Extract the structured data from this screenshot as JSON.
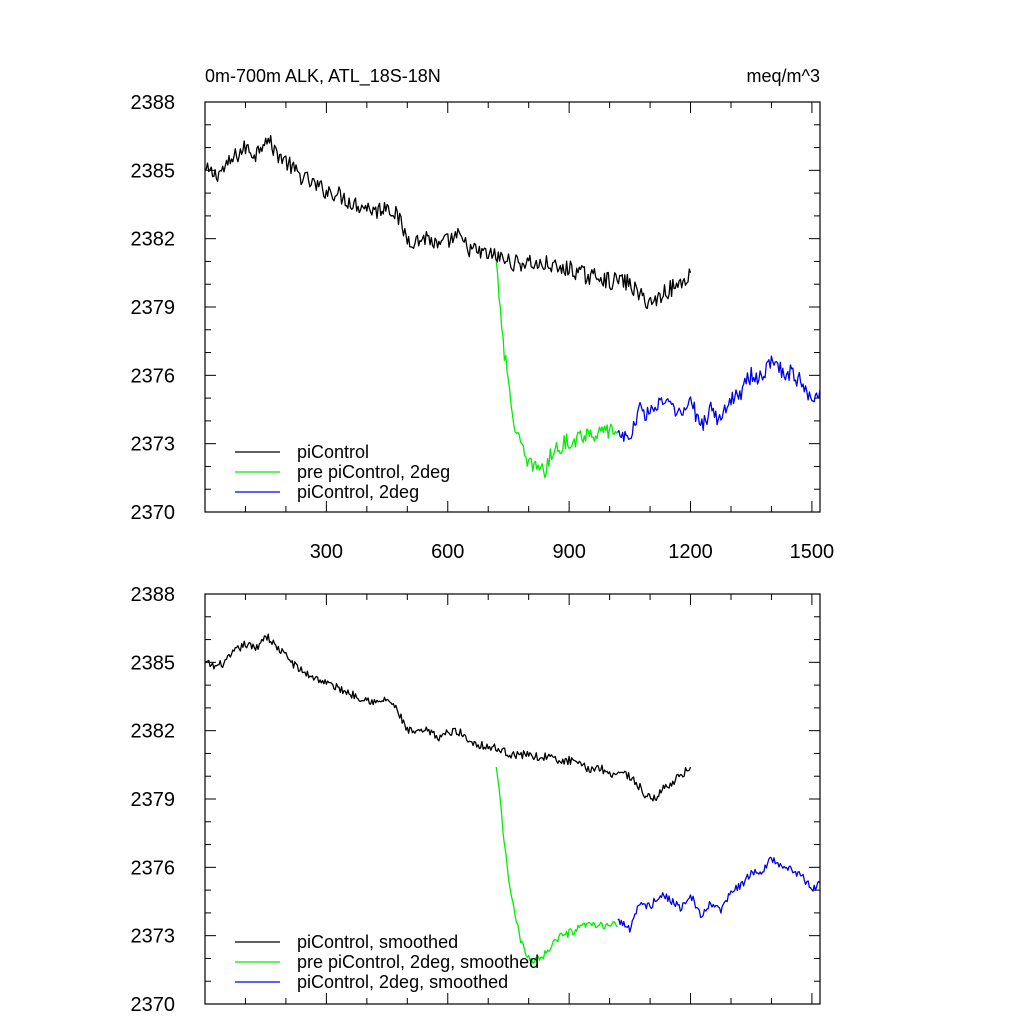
{
  "chart_data": [
    {
      "type": "line",
      "title_left": "0m-700m ALK, ATL_18S-18N",
      "title_right": "meq/m^3",
      "xlim": [
        0,
        1520
      ],
      "ylim": [
        2370,
        2388
      ],
      "x_ticks": [
        300,
        600,
        900,
        1200,
        1500
      ],
      "x_tick_labels": [
        "300",
        "600",
        "900",
        "1200",
        "1500"
      ],
      "y_ticks": [
        2370,
        2373,
        2376,
        2379,
        2382,
        2385,
        2388
      ],
      "y_tick_labels": [
        "2370",
        "2373",
        "2376",
        "2379",
        "2382",
        "2385",
        "2388"
      ],
      "legend_position": "bottom-left",
      "series": [
        {
          "name": "piControl",
          "color": "#000000",
          "x": [
            0,
            25,
            50,
            75,
            100,
            125,
            150,
            175,
            200,
            225,
            250,
            275,
            300,
            325,
            350,
            375,
            400,
            425,
            450,
            475,
            500,
            525,
            550,
            575,
            600,
            625,
            650,
            675,
            700,
            725,
            750,
            775,
            800,
            825,
            850,
            875,
            900,
            925,
            950,
            975,
            1000,
            1025,
            1050,
            1075,
            1090,
            1110,
            1130,
            1150,
            1175,
            1200
          ],
          "y": [
            2385.0,
            2384.8,
            2385.1,
            2385.6,
            2386.0,
            2385.7,
            2386.5,
            2385.8,
            2385.4,
            2384.9,
            2384.6,
            2384.3,
            2384.1,
            2384.0,
            2383.7,
            2383.5,
            2383.4,
            2383.2,
            2383.5,
            2383.0,
            2382.0,
            2381.9,
            2382.1,
            2381.6,
            2381.9,
            2382.1,
            2381.6,
            2381.4,
            2381.3,
            2381.2,
            2381.0,
            2380.9,
            2381.0,
            2380.8,
            2380.9,
            2380.6,
            2380.7,
            2380.5,
            2380.3,
            2380.4,
            2380.1,
            2380.2,
            2380.0,
            2379.5,
            2379.3,
            2379.2,
            2379.6,
            2379.8,
            2380.0,
            2380.5
          ]
        },
        {
          "name": "pre piControl, 2deg",
          "color": "#00ee00",
          "x": [
            720,
            730,
            740,
            750,
            760,
            770,
            780,
            790,
            800,
            810,
            820,
            830,
            840,
            850,
            860,
            875,
            900,
            925,
            950,
            975,
            1000,
            1020
          ],
          "y": [
            2381.0,
            2379.0,
            2377.0,
            2375.5,
            2374.3,
            2373.6,
            2372.9,
            2372.4,
            2372.0,
            2372.1,
            2371.9,
            2372.2,
            2371.6,
            2372.3,
            2372.6,
            2372.9,
            2373.1,
            2373.3,
            2373.5,
            2373.4,
            2373.6,
            2373.5
          ]
        },
        {
          "name": "piControl, 2deg",
          "color": "#0000ee",
          "x": [
            1020,
            1050,
            1075,
            1100,
            1125,
            1150,
            1175,
            1200,
            1225,
            1250,
            1275,
            1300,
            1325,
            1350,
            1375,
            1400,
            1425,
            1450,
            1475,
            1500,
            1520
          ],
          "y": [
            2373.5,
            2373.2,
            2374.5,
            2374.3,
            2374.9,
            2374.6,
            2374.2,
            2374.9,
            2373.7,
            2374.5,
            2374.0,
            2375.0,
            2375.3,
            2376.0,
            2375.8,
            2376.8,
            2376.2,
            2376.1,
            2375.7,
            2375.0,
            2375.4
          ]
        }
      ]
    },
    {
      "type": "line",
      "xlim": [
        0,
        1520
      ],
      "ylim": [
        2370,
        2388
      ],
      "x_ticks": [
        300,
        600,
        900,
        1200,
        1500
      ],
      "y_ticks": [
        2370,
        2373,
        2376,
        2379,
        2382,
        2385,
        2388
      ],
      "y_tick_labels": [
        "2370",
        "2373",
        "2376",
        "2379",
        "2382",
        "2385",
        "2388"
      ],
      "legend_position": "bottom-left",
      "series": [
        {
          "name": "piControl, smoothed",
          "color": "#000000",
          "x": [
            0,
            25,
            50,
            75,
            100,
            125,
            150,
            175,
            200,
            225,
            250,
            275,
            300,
            325,
            350,
            375,
            400,
            425,
            450,
            475,
            500,
            525,
            550,
            575,
            600,
            625,
            650,
            675,
            700,
            725,
            750,
            775,
            800,
            825,
            850,
            875,
            900,
            925,
            950,
            975,
            1000,
            1025,
            1050,
            1075,
            1090,
            1110,
            1130,
            1150,
            1175,
            1200
          ],
          "y": [
            2385.0,
            2384.8,
            2385.0,
            2385.5,
            2385.8,
            2385.6,
            2386.2,
            2385.7,
            2385.3,
            2384.8,
            2384.5,
            2384.3,
            2384.1,
            2383.9,
            2383.7,
            2383.5,
            2383.4,
            2383.2,
            2383.4,
            2382.9,
            2382.0,
            2381.9,
            2382.0,
            2381.7,
            2381.9,
            2382.0,
            2381.6,
            2381.4,
            2381.3,
            2381.2,
            2381.0,
            2380.9,
            2381.0,
            2380.8,
            2380.9,
            2380.6,
            2380.7,
            2380.5,
            2380.3,
            2380.4,
            2380.1,
            2380.2,
            2380.0,
            2379.5,
            2379.1,
            2379.0,
            2379.4,
            2379.7,
            2380.0,
            2380.4
          ]
        },
        {
          "name": "pre piControl, 2deg, smoothed",
          "color": "#00ee00",
          "x": [
            720,
            730,
            740,
            750,
            760,
            770,
            780,
            790,
            800,
            810,
            820,
            830,
            840,
            850,
            860,
            875,
            900,
            925,
            950,
            975,
            1000,
            1020
          ],
          "y": [
            2380.4,
            2378.8,
            2377.0,
            2375.6,
            2374.4,
            2373.6,
            2372.8,
            2372.3,
            2372.0,
            2371.9,
            2372.1,
            2372.0,
            2372.2,
            2372.4,
            2372.7,
            2372.9,
            2373.1,
            2373.3,
            2373.5,
            2373.4,
            2373.5,
            2373.4
          ]
        },
        {
          "name": "piControl, 2deg, smoothed",
          "color": "#0000ee",
          "x": [
            1020,
            1050,
            1075,
            1100,
            1125,
            1150,
            1175,
            1200,
            1225,
            1250,
            1275,
            1300,
            1325,
            1350,
            1375,
            1400,
            1425,
            1450,
            1475,
            1500,
            1520
          ],
          "y": [
            2373.7,
            2373.3,
            2374.4,
            2374.3,
            2374.8,
            2374.6,
            2374.2,
            2374.8,
            2373.8,
            2374.4,
            2374.1,
            2374.9,
            2375.2,
            2375.8,
            2375.7,
            2376.4,
            2376.0,
            2375.9,
            2375.6,
            2375.0,
            2375.3
          ]
        }
      ]
    }
  ]
}
